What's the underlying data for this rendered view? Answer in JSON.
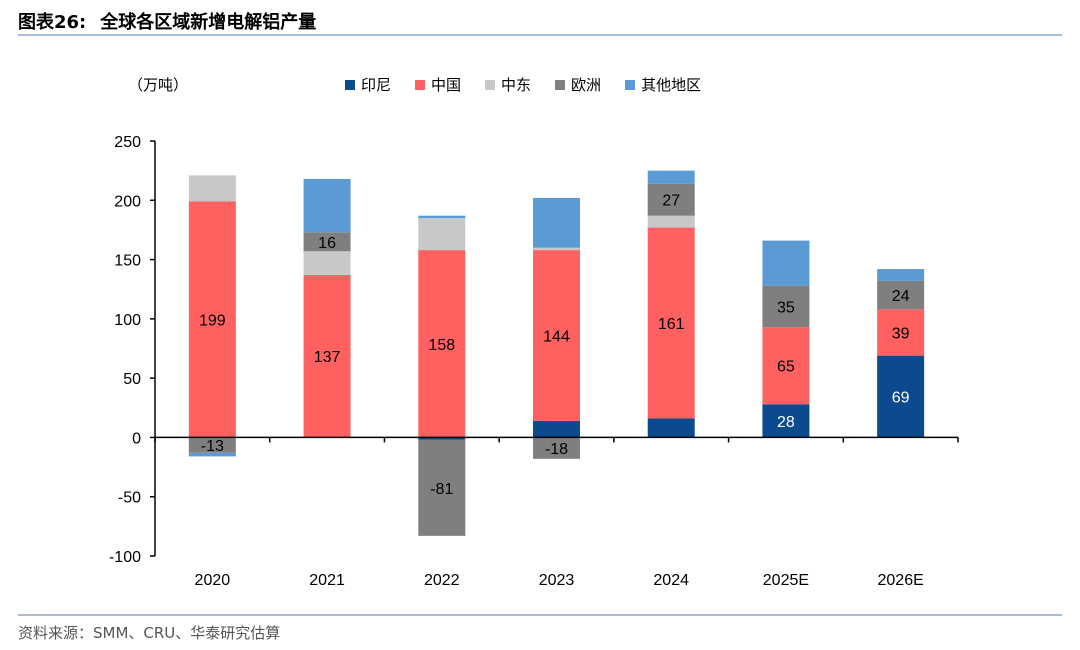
{
  "figure": {
    "label": "图表26:",
    "title": "全球各区域新增电解铝产量"
  },
  "source": "资料来源：SMM、CRU、华泰研究估算",
  "chart_data": {
    "type": "bar",
    "stacked": true,
    "unit_label": "（万吨）",
    "categories": [
      "2020",
      "2021",
      "2022",
      "2023",
      "2024",
      "2025E",
      "2026E"
    ],
    "ylim": [
      -100,
      250
    ],
    "yticks": [
      250,
      200,
      150,
      100,
      50,
      0,
      -50,
      -100
    ],
    "legend_position": "top",
    "series": [
      {
        "name": "印尼",
        "color": "#0b4a8f",
        "values": [
          0,
          0,
          -2,
          14,
          16,
          28,
          69
        ],
        "labels": [
          null,
          null,
          null,
          null,
          null,
          "28",
          "69"
        ],
        "label_color": "#ffffff"
      },
      {
        "name": "中国",
        "color": "#ff6161",
        "values": [
          199,
          137,
          158,
          144,
          161,
          65,
          39
        ],
        "labels": [
          "199",
          "137",
          "158",
          "144",
          "161",
          "65",
          "39"
        ],
        "label_color": "#000000"
      },
      {
        "name": "中东",
        "color": "#c8c8c8",
        "values": [
          22,
          20,
          27,
          2,
          10,
          0,
          0
        ],
        "labels": [
          null,
          null,
          null,
          null,
          null,
          null,
          null
        ],
        "label_color": "#000000"
      },
      {
        "name": "欧洲",
        "color": "#7f7f7f",
        "values": [
          -13,
          16,
          -81,
          -18,
          27,
          35,
          24
        ],
        "labels": [
          "-13",
          "16",
          "-81",
          "-18",
          "27",
          "35",
          "24"
        ],
        "label_color": "#000000"
      },
      {
        "name": "其他地区",
        "color": "#5b9bd5",
        "values": [
          -3,
          45,
          2,
          42,
          11,
          38,
          10
        ],
        "labels": [
          null,
          null,
          null,
          null,
          null,
          null,
          null
        ],
        "label_color": "#000000"
      }
    ]
  }
}
